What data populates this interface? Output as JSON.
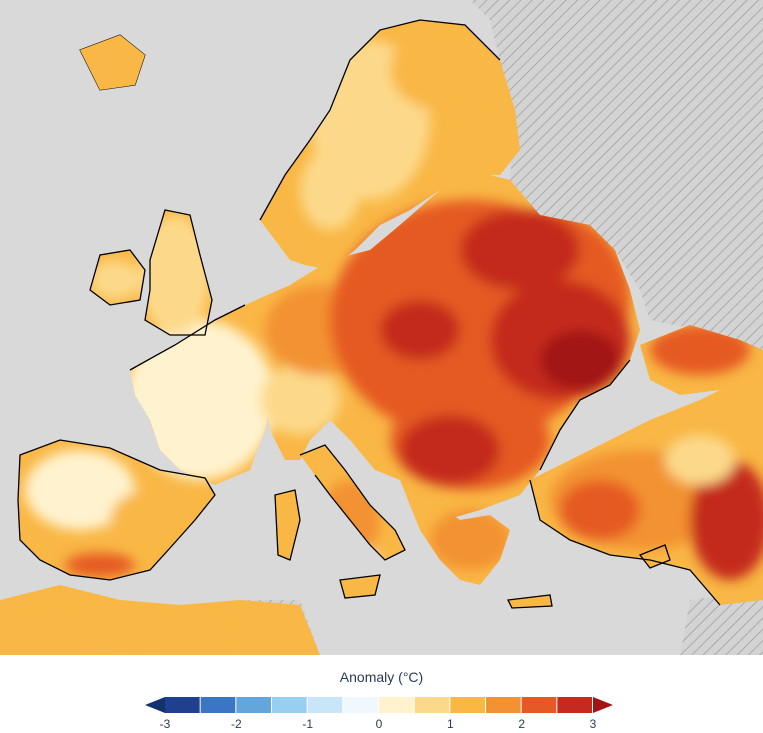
{
  "legend": {
    "title": "Anomaly (°C)",
    "ticks": [
      "-3",
      "-2",
      "-1",
      "0",
      "1",
      "2",
      "3"
    ],
    "colors": [
      "#1f3f8f",
      "#3b76c4",
      "#62a6dc",
      "#98cef0",
      "#c8e6f8",
      "#eef8fd",
      "#fff3cf",
      "#fcd98a",
      "#f9b745",
      "#f39232",
      "#e55a24",
      "#c42a1e"
    ],
    "under_color": "#13306f",
    "over_color": "#a31515"
  },
  "map": {
    "sea_color": "#d9d9d9",
    "nodata_color": "#c8c8c8",
    "border_color": "#000000"
  }
}
